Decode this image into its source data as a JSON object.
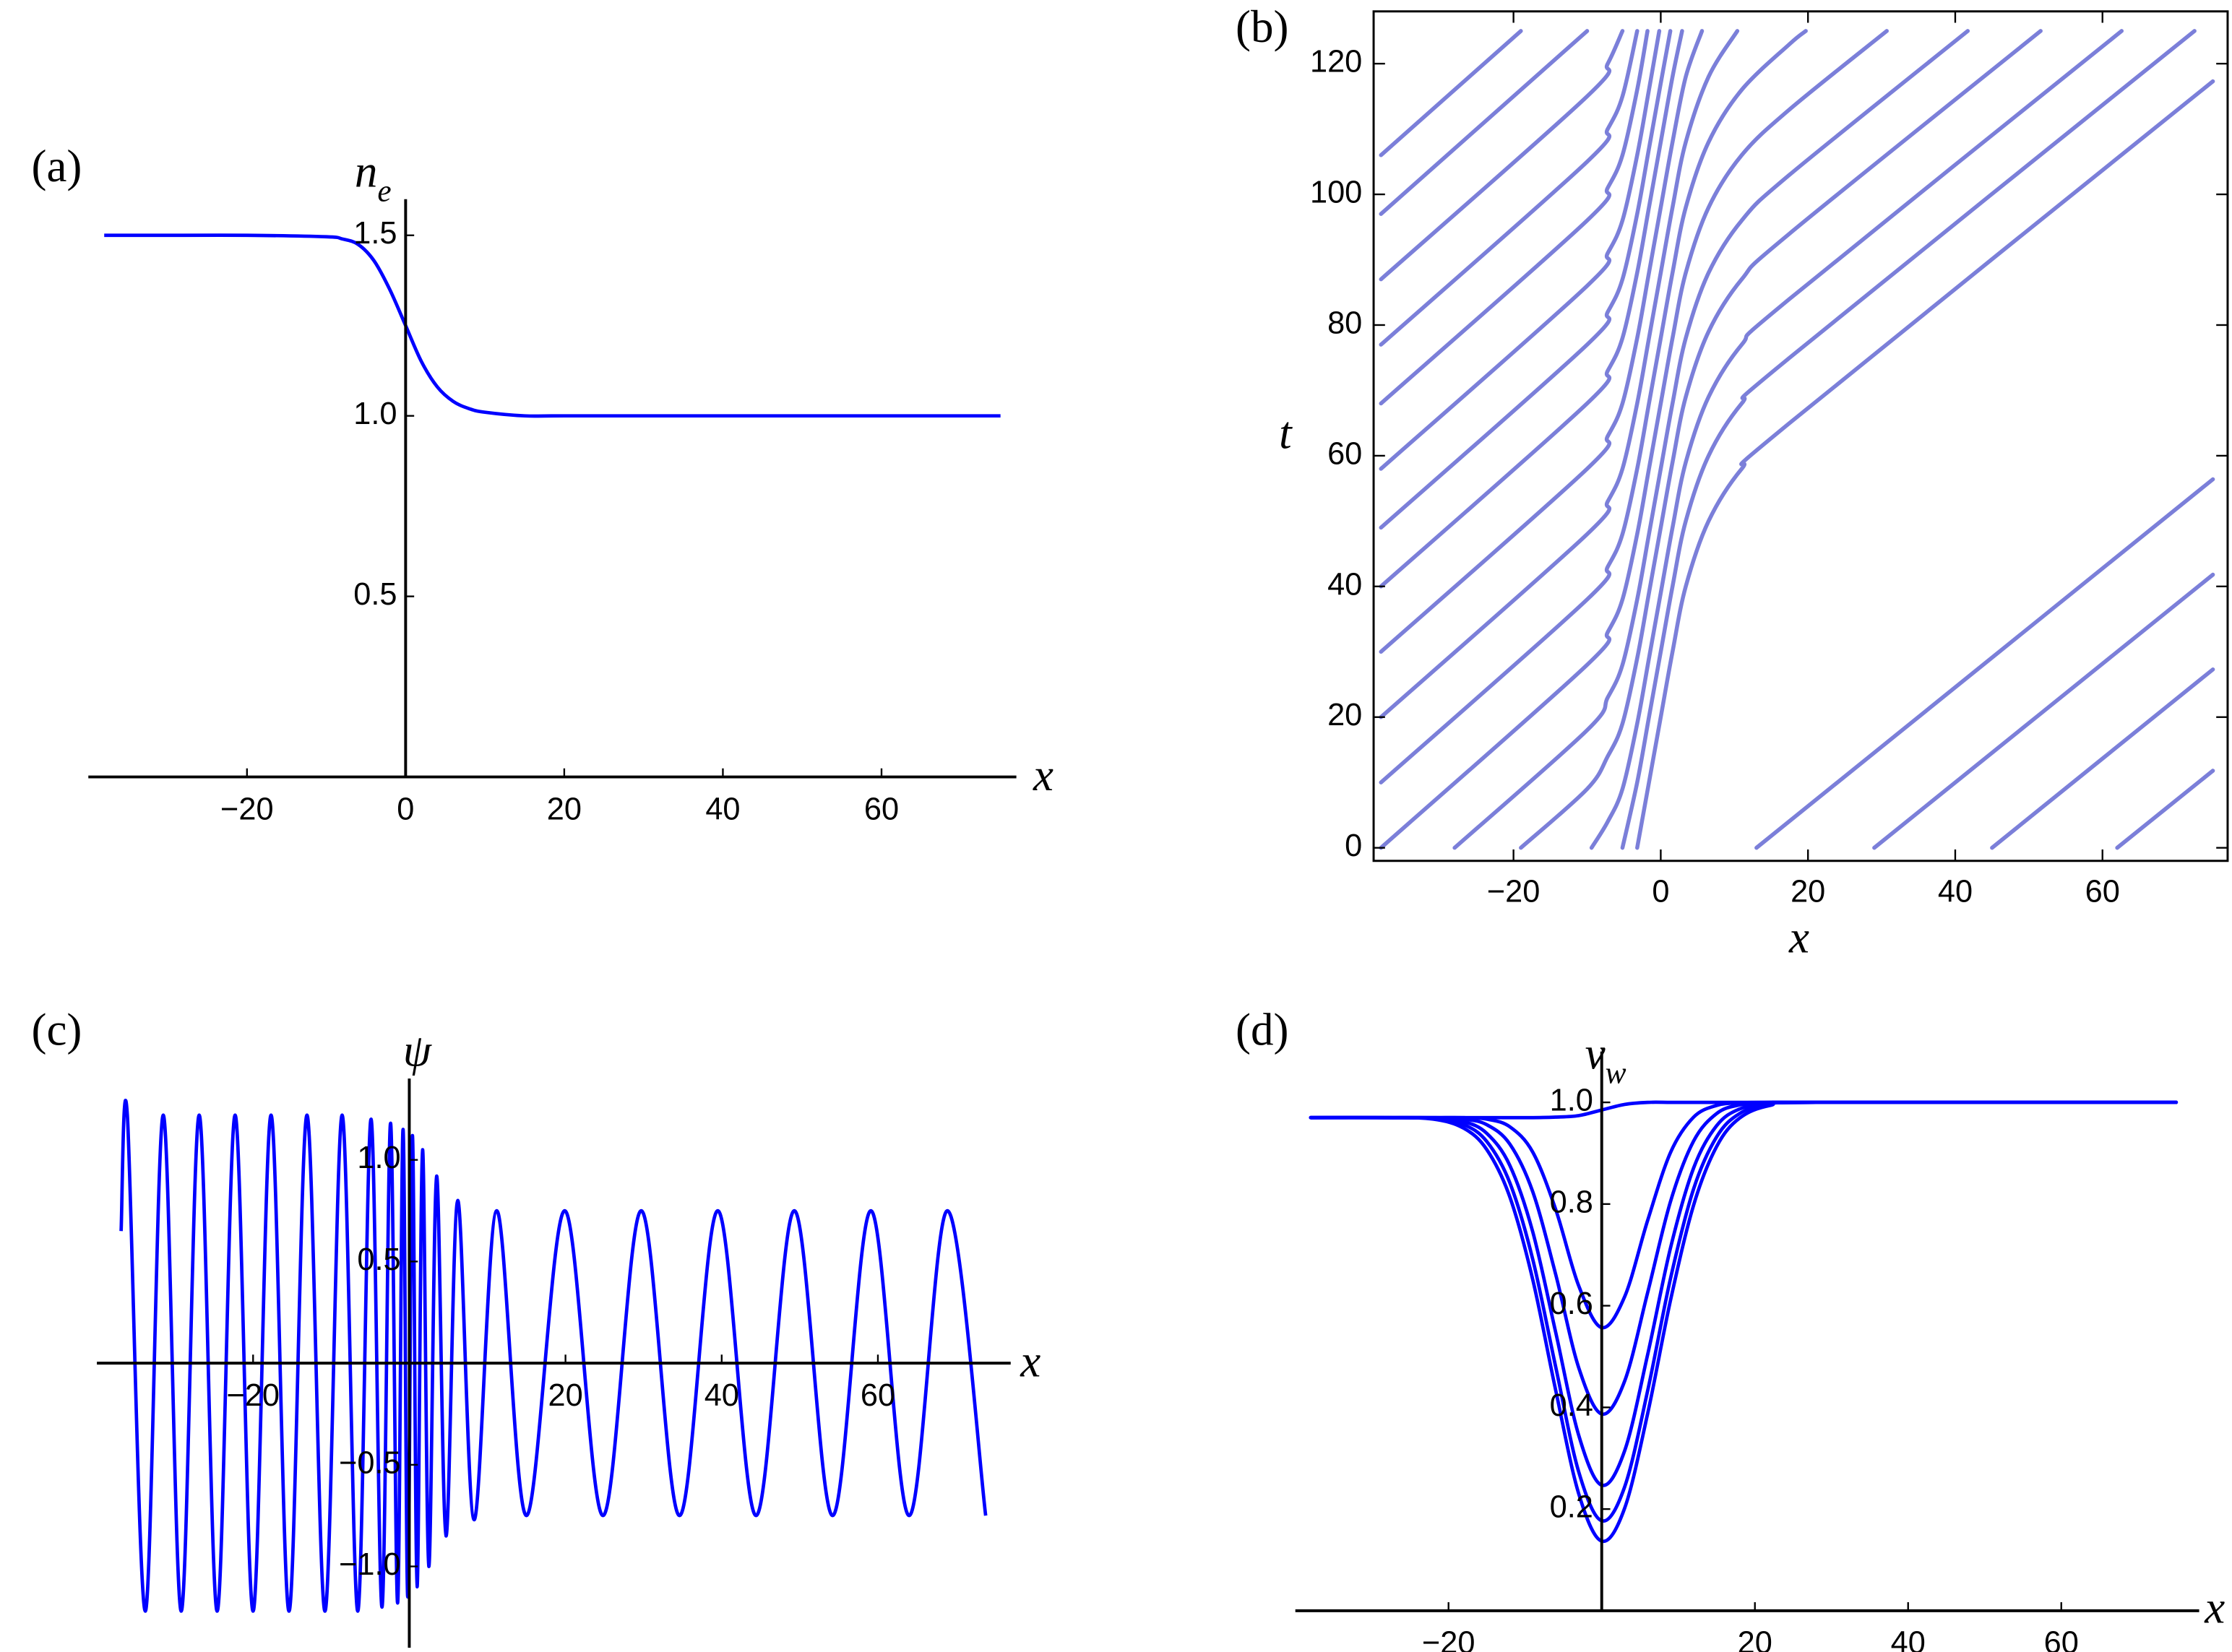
{
  "chart_data": [
    {
      "type": "line",
      "panel_label": "(a)",
      "x_label": "x",
      "y_label": "n",
      "y_label_sub": "e",
      "axes": "origin",
      "color": "#0000ff",
      "x": [
        -38,
        -30,
        -20,
        -10,
        -8,
        -6,
        -4,
        -2,
        0,
        2,
        4,
        6,
        8,
        10,
        15,
        20,
        40,
        60,
        75
      ],
      "values": [
        1.5,
        1.5,
        1.5,
        1.496,
        1.49,
        1.475,
        1.43,
        1.35,
        1.25,
        1.15,
        1.08,
        1.04,
        1.02,
        1.01,
        1.0,
        1.0,
        1.0,
        1.0,
        1.0
      ],
      "xlim": [
        -40,
        77
      ],
      "ylim": [
        0,
        1.6
      ],
      "xticks": [
        {
          "value": -20,
          "label": "−20"
        },
        0,
        20,
        40,
        60
      ],
      "yticks": [
        0.5,
        {
          "value": 1,
          "label": "1.0"
        },
        1.5
      ]
    },
    {
      "type": "line",
      "panel_label": "(b)",
      "x_label": "x",
      "y_label": "t",
      "axes": "frame",
      "color": "#7b7fd9",
      "xlim": [
        -39,
        77
      ],
      "ylim": [
        -2,
        128
      ],
      "xticks": [
        {
          "value": -20,
          "label": "−20"
        },
        0,
        20,
        40,
        60
      ],
      "yticks": [
        0,
        20,
        40,
        60,
        80,
        100,
        120
      ],
      "series": [
        {
          "x": [
            -38,
            -19
          ],
          "values": [
            106,
            125
          ]
        },
        {
          "x": [
            -38,
            -10
          ],
          "values": [
            97,
            125
          ]
        },
        {
          "x": [
            -38,
            -10,
            -7.2,
            -5.2
          ],
          "values": [
            87,
            115,
            120,
            125
          ]
        },
        {
          "x": [
            -38,
            -10,
            -7.2,
            -5.2,
            -3.2
          ],
          "values": [
            77,
            105,
            110,
            115,
            125
          ]
        },
        {
          "x": [
            -38,
            -10,
            -7.2,
            -5.2,
            -3.2,
            -1.8
          ],
          "values": [
            68,
            96,
            101,
            106,
            116,
            125
          ]
        },
        {
          "x": [
            -38,
            -10,
            -7.2,
            -5.2,
            -3.2,
            -1.6,
            -0.2
          ],
          "values": [
            58,
            86,
            91,
            96,
            106,
            116,
            125
          ]
        },
        {
          "x": [
            -38,
            -10,
            -7.2,
            -5.2,
            -3.2,
            -1.6,
            0,
            1.3
          ],
          "values": [
            49,
            77,
            82,
            87,
            97,
            107,
            117,
            125
          ]
        },
        {
          "x": [
            -38,
            -10,
            -7.2,
            -5.2,
            -3.2,
            -1.6,
            0,
            1.6,
            2.9
          ],
          "values": [
            40,
            68,
            73,
            78,
            88,
            98,
            108,
            118,
            125
          ]
        },
        {
          "x": [
            -38,
            -10,
            -7.2,
            -5.2,
            -3.2,
            -1.6,
            0,
            1.6,
            3.4,
            5.6
          ],
          "values": [
            30,
            58,
            63,
            68,
            78,
            88,
            98,
            108,
            118,
            125
          ]
        },
        {
          "x": [
            -38,
            -10,
            -7.2,
            -5.2,
            -3.2,
            -1.6,
            0,
            1.6,
            3.4,
            6.5,
            10.4
          ],
          "values": [
            20,
            48,
            53,
            58,
            68,
            78,
            88,
            98,
            108,
            118,
            125
          ]
        },
        {
          "x": [
            -38,
            -10,
            -7.2,
            -5.2,
            -3.2,
            -1.6,
            0,
            1.6,
            3.4,
            6.5,
            11,
            17.5,
            19.7
          ],
          "values": [
            10,
            38,
            43,
            48,
            58,
            68,
            78,
            88,
            98,
            108,
            116,
            123,
            125
          ]
        },
        {
          "x": [
            -38,
            -10,
            -7.2,
            -5.2,
            -3.2,
            -1.6,
            0,
            1.6,
            3.4,
            6.5,
            11,
            17.5,
            30.7
          ],
          "values": [
            0,
            28,
            33,
            38,
            48,
            58,
            68,
            78,
            88,
            98,
            106,
            113,
            125
          ]
        },
        {
          "x": [
            -28,
            -10,
            -7.2,
            -5.2,
            -3.2,
            -1.6,
            0,
            1.6,
            3.4,
            6.5,
            11,
            17.5,
            41.7
          ],
          "values": [
            0,
            18,
            23,
            28,
            38,
            48,
            58,
            68,
            78,
            88,
            96,
            103,
            125
          ]
        },
        {
          "x": [
            -19,
            -10,
            -7.2,
            -5.2,
            -3.2,
            -1.6,
            0,
            1.6,
            3.4,
            6.5,
            11,
            17.5,
            51.6
          ],
          "values": [
            0,
            9,
            14,
            19,
            29,
            39,
            49,
            59,
            69,
            79,
            87,
            94,
            125
          ]
        },
        {
          "x": [
            -9.4,
            -7.2,
            -5.2,
            -3.2,
            -1.6,
            0,
            1.6,
            3.4,
            6.5,
            11,
            17.5,
            62.6
          ],
          "values": [
            0,
            4,
            9,
            19,
            29,
            39,
            49,
            59,
            69,
            77,
            84,
            125
          ]
        },
        {
          "x": [
            -5.2,
            -3.2,
            -1.6,
            0,
            1.6,
            3.4,
            6.5,
            11,
            17.5,
            72.5
          ],
          "values": [
            0,
            10,
            20,
            30,
            40,
            50,
            60,
            68,
            75,
            125
          ]
        },
        {
          "x": [
            -3.2,
            -1.6,
            0,
            1.6,
            3.4,
            6.5,
            11,
            17.5,
            75
          ],
          "values": [
            0,
            10,
            20,
            30,
            40,
            50,
            58,
            65,
            117.3
          ]
        },
        {
          "x": [
            13,
            75
          ],
          "values": [
            0,
            56.4
          ]
        },
        {
          "x": [
            29,
            75
          ],
          "values": [
            0,
            41.8
          ]
        },
        {
          "x": [
            45,
            75
          ],
          "values": [
            0,
            27.3
          ]
        },
        {
          "x": [
            62,
            75
          ],
          "values": [
            0,
            11.8
          ]
        }
      ]
    },
    {
      "type": "line",
      "panel_label": "(c)",
      "x_label": "x",
      "y_label": "ψ",
      "axes": "origin",
      "color": "#0000ff",
      "x": [
        -36.9,
        -36.1,
        -33.8,
        -31.5,
        -29.2,
        -26.9,
        -24.6,
        -22.3,
        -20.0,
        -17.7,
        -15.4,
        -13.1,
        -10.8,
        -8.6,
        -6.6,
        -4.9,
        -3.5,
        -2.4,
        -1.5,
        -0.8,
        -0.2,
        0.4,
        1.0,
        1.7,
        2.5,
        3.5,
        4.7,
        6.2,
        8.3,
        11.2,
        15.0,
        19.9,
        24.8,
        29.7,
        34.6,
        39.5,
        44.4,
        49.3,
        54.2,
        59.1,
        64.0,
        68.9,
        73.8
      ],
      "values": [
        0.65,
        1.22,
        -1.22,
        1.22,
        -1.22,
        1.22,
        -1.22,
        1.22,
        -1.22,
        1.22,
        -1.22,
        1.22,
        -1.22,
        1.22,
        -1.22,
        1.2,
        -1.2,
        1.18,
        -1.18,
        1.15,
        -1.15,
        1.12,
        -1.1,
        1.05,
        -1.0,
        0.92,
        -0.85,
        0.8,
        -0.77,
        0.75,
        -0.75,
        0.75,
        -0.75,
        0.75,
        -0.75,
        0.75,
        -0.75,
        0.75,
        -0.75,
        0.75,
        -0.75,
        0.75,
        -0.75
      ],
      "xlim": [
        -40,
        77
      ],
      "ylim": [
        -1.4,
        1.4
      ],
      "xticks": [
        {
          "value": -20,
          "label": "−20"
        },
        20,
        40,
        60
      ],
      "yticks": [
        {
          "value": -1,
          "label": "−1.0"
        },
        {
          "value": -0.5,
          "label": "−0.5"
        },
        0.5,
        {
          "value": 1,
          "label": "1.0"
        }
      ]
    },
    {
      "type": "line",
      "panel_label": "(d)",
      "x_label": "x",
      "y_label": "v",
      "y_label_sub": "w",
      "axes": "origin",
      "color": "#0000ff",
      "x": [
        -38,
        -28,
        -22,
        -18,
        -15,
        -12,
        -9,
        -6,
        -3,
        0,
        3,
        6,
        9,
        12,
        15,
        18,
        22,
        28,
        75
      ],
      "xlim": [
        -40,
        78
      ],
      "ylim": [
        0,
        1.1
      ],
      "xticks": [
        {
          "value": -20,
          "label": "−20"
        },
        20,
        40,
        60
      ],
      "yticks": [
        0.2,
        0.4,
        0.6,
        0.8,
        {
          "value": 1,
          "label": "1.0"
        }
      ],
      "series": [
        {
          "values": [
            0.97,
            0.97,
            0.97,
            0.97,
            0.97,
            0.97,
            0.97,
            0.971,
            0.974,
            0.985,
            0.996,
            1,
            1,
            1,
            1,
            1,
            1,
            1,
            1
          ]
        },
        {
          "values": [
            0.97,
            0.97,
            0.97,
            0.97,
            0.967,
            0.952,
            0.902,
            0.789,
            0.639,
            0.557,
            0.618,
            0.768,
            0.902,
            0.971,
            0.994,
            0.999,
            1,
            1,
            1
          ]
        },
        {
          "values": [
            0.97,
            0.97,
            0.97,
            0.967,
            0.956,
            0.918,
            0.824,
            0.661,
            0.478,
            0.387,
            0.452,
            0.626,
            0.806,
            0.924,
            0.978,
            0.995,
            1,
            1,
            1
          ]
        },
        {
          "values": [
            0.97,
            0.97,
            0.969,
            0.962,
            0.939,
            0.876,
            0.745,
            0.547,
            0.345,
            0.247,
            0.315,
            0.504,
            0.715,
            0.871,
            0.954,
            0.987,
            0.998,
            1,
            1
          ]
        },
        {
          "values": [
            0.97,
            0.97,
            0.968,
            0.956,
            0.923,
            0.842,
            0.691,
            0.479,
            0.273,
            0.177,
            0.244,
            0.433,
            0.655,
            0.83,
            0.932,
            0.978,
            0.997,
            1,
            1
          ]
        },
        {
          "values": [
            0.97,
            0.97,
            0.967,
            0.949,
            0.907,
            0.814,
            0.651,
            0.433,
            0.23,
            0.137,
            0.202,
            0.388,
            0.612,
            0.798,
            0.913,
            0.969,
            0.994,
            1,
            1
          ]
        }
      ]
    }
  ]
}
